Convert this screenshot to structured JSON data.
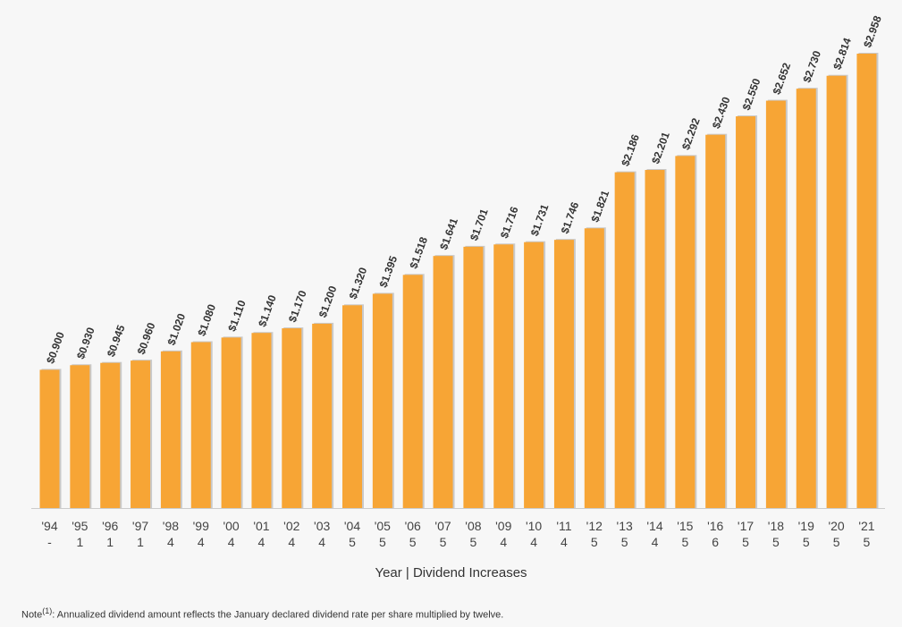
{
  "chart_data": {
    "type": "bar",
    "categories": [
      "'94",
      "'95",
      "'96",
      "'97",
      "'98",
      "'99",
      "'00",
      "'01",
      "'02",
      "'03",
      "'04",
      "'05",
      "'06",
      "'07",
      "'08",
      "'09",
      "'10",
      "'11",
      "'12",
      "'13",
      "'14",
      "'15",
      "'16",
      "'17",
      "'18",
      "'19",
      "'20",
      "'21"
    ],
    "increases": [
      "-",
      "1",
      "1",
      "1",
      "4",
      "4",
      "4",
      "4",
      "4",
      "4",
      "5",
      "5",
      "5",
      "5",
      "5",
      "4",
      "4",
      "4",
      "5",
      "5",
      "4",
      "5",
      "6",
      "5",
      "5",
      "5",
      "5",
      "5"
    ],
    "values": [
      0.9,
      0.93,
      0.945,
      0.96,
      1.02,
      1.08,
      1.11,
      1.14,
      1.17,
      1.2,
      1.32,
      1.395,
      1.518,
      1.641,
      1.701,
      1.716,
      1.731,
      1.746,
      1.821,
      2.186,
      2.201,
      2.292,
      2.43,
      2.55,
      2.652,
      2.73,
      2.814,
      2.958
    ],
    "value_labels": [
      "$0.900",
      "$0.930",
      "$0.945",
      "$0.960",
      "$1.020",
      "$1.080",
      "$1.110",
      "$1.140",
      "$1.170",
      "$1.200",
      "$1.320",
      "$1.395",
      "$1.518",
      "$1.641",
      "$1.701",
      "$1.716",
      "$1.731",
      "$1.746",
      "$1.821",
      "$2.186",
      "$2.201",
      "$2.292",
      "$2.430",
      "$2.550",
      "$2.652",
      "$2.730",
      "$2.814",
      "$2.958"
    ],
    "xlabel": "Year | Dividend Increases",
    "ylim": [
      0,
      3.0
    ],
    "grid": false,
    "bar_color": "#f7a535",
    "shadow_color": "#c9c9c9"
  },
  "note": {
    "prefix": "Note",
    "marker": "(1)",
    "text": ": Annualized dividend amount reflects the January declared dividend rate per share multiplied by twelve."
  }
}
